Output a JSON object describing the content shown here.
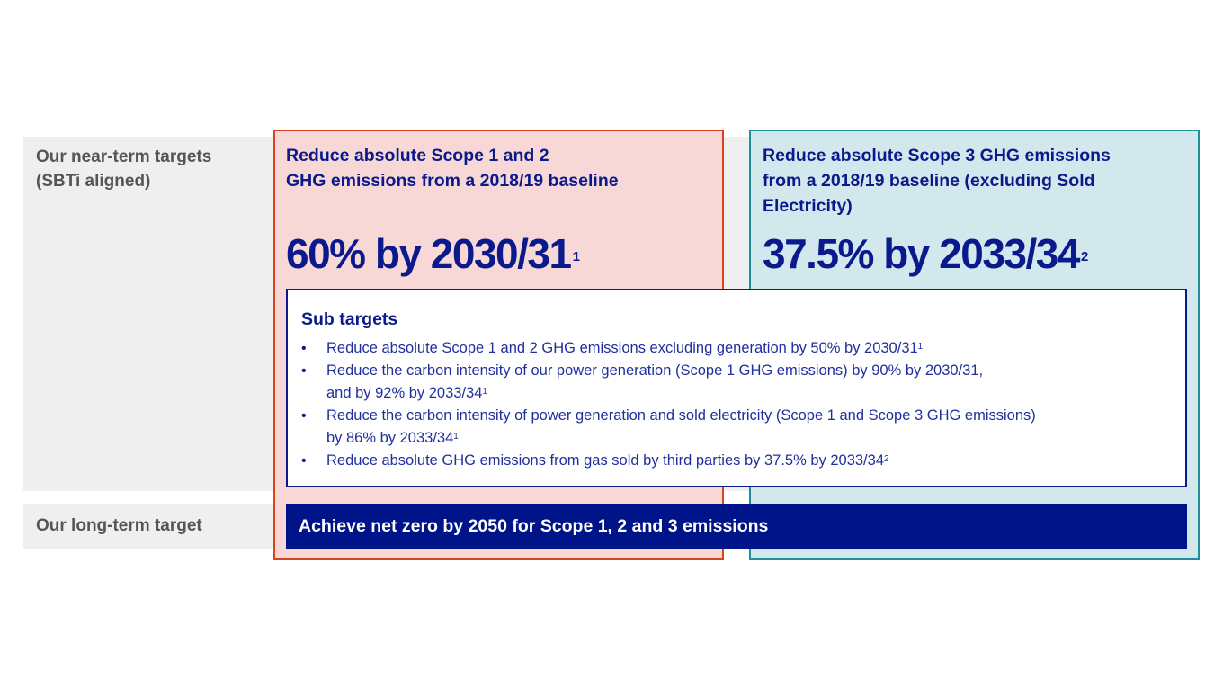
{
  "near_term": {
    "label": "Our near-term targets\n(SBTi aligned)"
  },
  "long_term": {
    "label": "Our long-term target",
    "target": "Achieve net zero by 2050 for Scope 1, 2 and 3 emissions"
  },
  "scope12": {
    "description": "Reduce absolute Scope 1 and 2\nGHG emissions from a 2018/19 baseline",
    "target": "60% by 2030/31",
    "footnote": "1",
    "border_color": "#d9441f",
    "fill_color": "#f8d8d6"
  },
  "scope3": {
    "description": "Reduce absolute Scope 3 GHG emissions\nfrom a 2018/19 baseline (excluding Sold\nElectricity)",
    "target": "37.5% by 2033/34",
    "footnote": "2",
    "border_color": "#1e8f99",
    "fill_color": "#d2e8ec"
  },
  "sub_targets": {
    "title": "Sub targets",
    "items": [
      {
        "lines": [
          "Reduce absolute Scope 1 and 2 GHG emissions excluding generation by 50% by 2030/31"
        ],
        "footnote": "1"
      },
      {
        "lines": [
          "Reduce the carbon intensity of our power generation (Scope 1 GHG emissions) by 90% by 2030/31,",
          "and by 92% by 2033/34"
        ],
        "footnote": "1"
      },
      {
        "lines": [
          "Reduce the carbon intensity of power generation and sold electricity (Scope 1 and Scope 3 GHG emissions)",
          "by 86% by 2033/34"
        ],
        "footnote": "1"
      },
      {
        "lines": [
          "Reduce absolute GHG emissions from gas sold by third parties by 37.5% by 2033/34"
        ],
        "footnote": "2"
      }
    ]
  },
  "colors": {
    "navy": "#001489",
    "text_navy": "#0a1a8c",
    "grey_band": "#efefef"
  }
}
